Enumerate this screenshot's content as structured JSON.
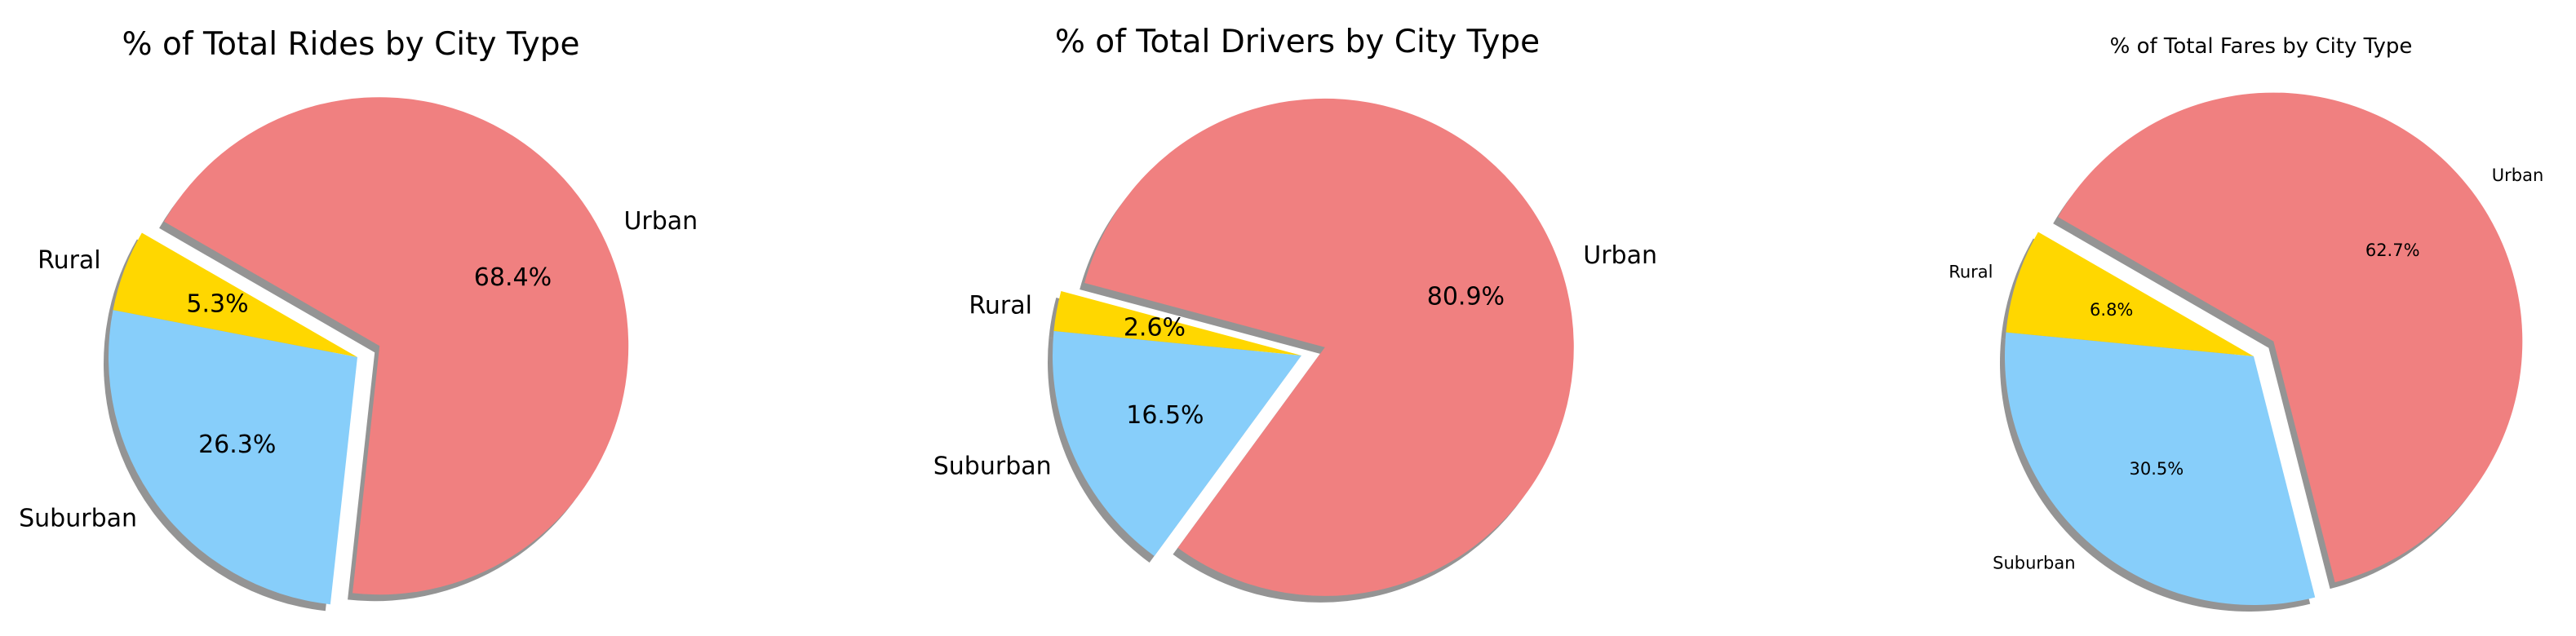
{
  "chart_data": [
    {
      "type": "pie",
      "title": "% of Total Rides by City Type",
      "categories": [
        "Rural",
        "Suburban",
        "Urban"
      ],
      "values": [
        5.3,
        26.3,
        68.4
      ],
      "value_labels": [
        "5.3%",
        "26.3%",
        "68.4%"
      ],
      "colors": [
        "#ffd700",
        "#87cefa",
        "#f08080"
      ],
      "explode": [
        0,
        0,
        0.1
      ],
      "shadow": true,
      "start_angle_deg": 150
    },
    {
      "type": "pie",
      "title": "% of Total Drivers by City Type",
      "categories": [
        "Rural",
        "Suburban",
        "Urban"
      ],
      "values": [
        2.6,
        16.5,
        80.9
      ],
      "value_labels": [
        "2.6%",
        "16.5%",
        "80.9%"
      ],
      "colors": [
        "#ffd700",
        "#87cefa",
        "#f08080"
      ],
      "explode": [
        0,
        0,
        0.1
      ],
      "shadow": true,
      "start_angle_deg": 165
    },
    {
      "type": "pie",
      "title": "% of Total Fares by City Type",
      "categories": [
        "Rural",
        "Suburban",
        "Urban"
      ],
      "values": [
        6.8,
        30.5,
        62.7
      ],
      "value_labels": [
        "6.8%",
        "30.5%",
        "62.7%"
      ],
      "colors": [
        "#ffd700",
        "#87cefa",
        "#f08080"
      ],
      "explode": [
        0,
        0,
        0.1
      ],
      "shadow": true,
      "start_angle_deg": 150
    }
  ]
}
